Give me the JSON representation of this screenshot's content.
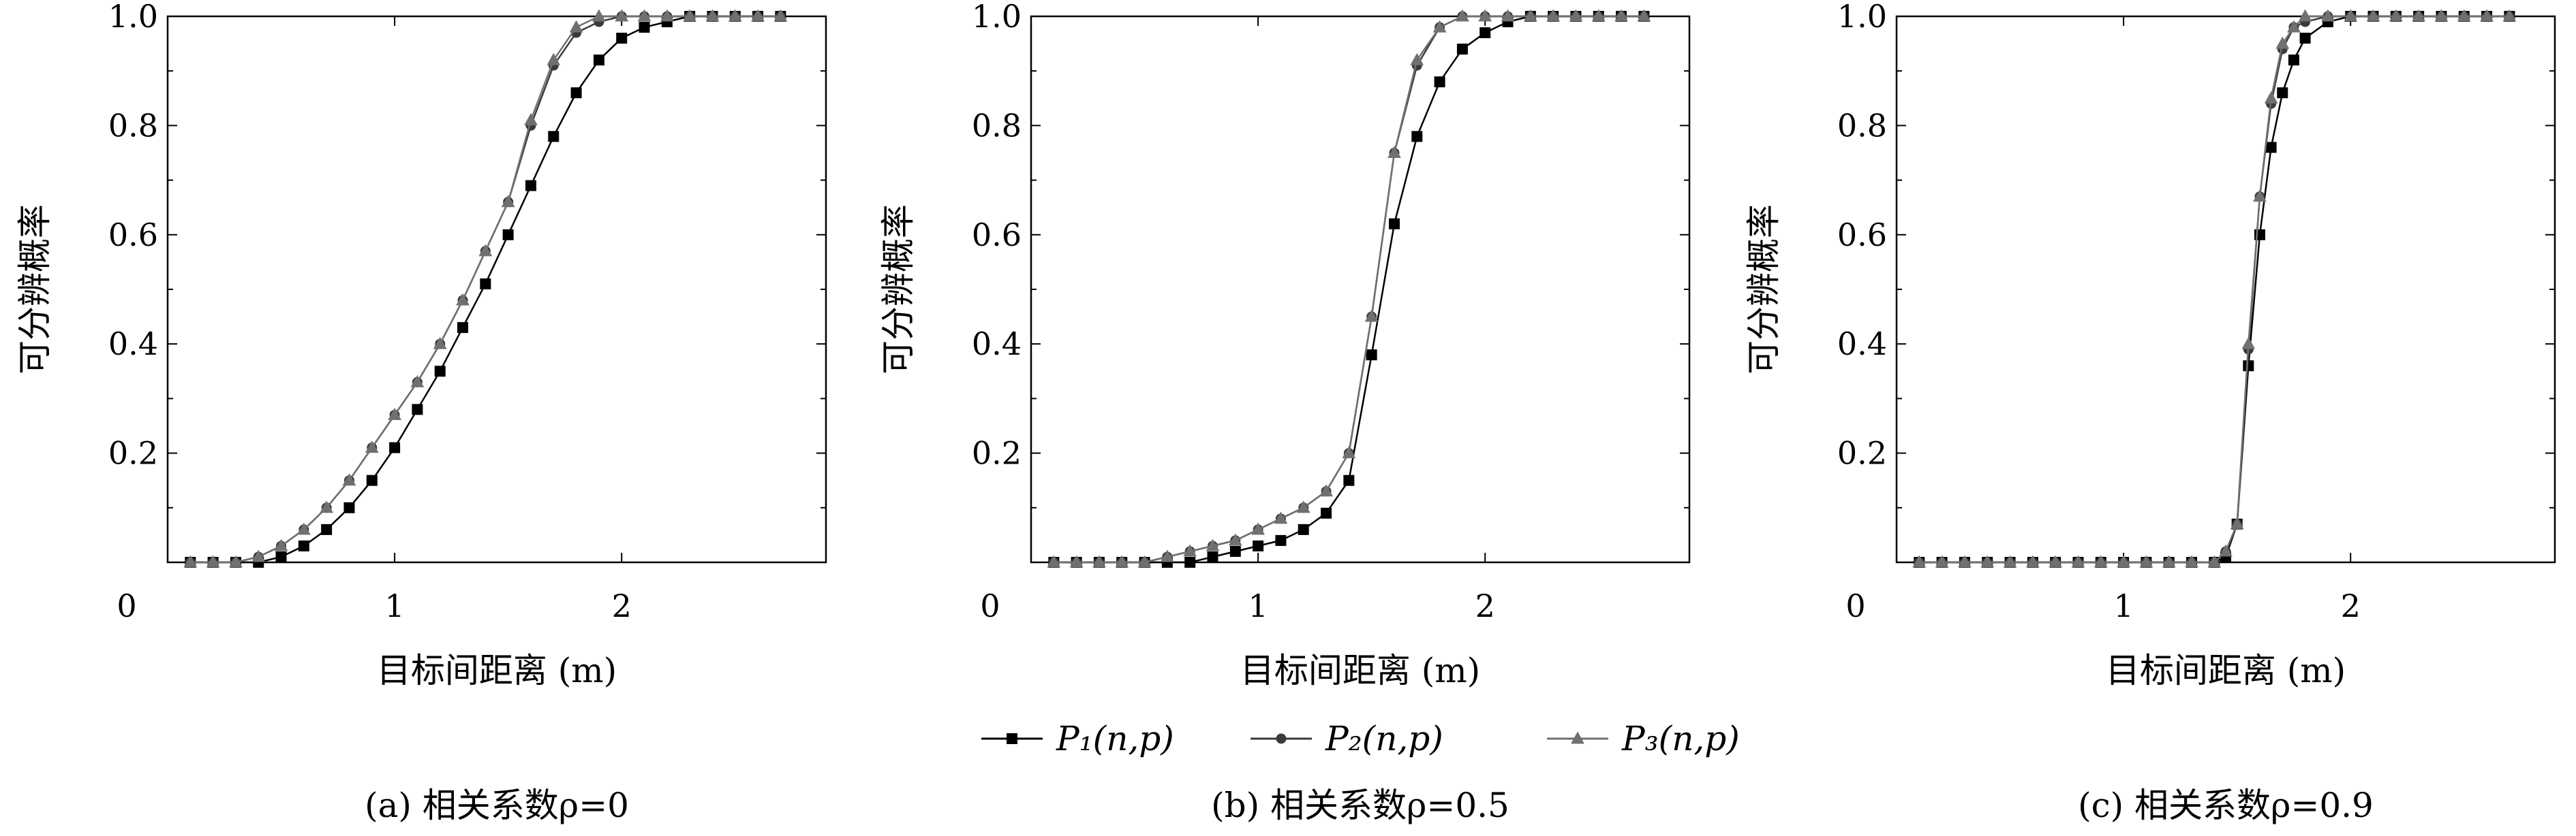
{
  "legend": {
    "items": [
      {
        "label": "P₁(n,p)",
        "color": "#000000",
        "marker": "square"
      },
      {
        "label": "P₂(n,p)",
        "color": "#3a3a3a",
        "marker": "circle"
      },
      {
        "label": "P₃(n,p)",
        "color": "#707070",
        "marker": "triangle"
      }
    ]
  },
  "chart_data": [
    {
      "type": "line",
      "caption": "(a) 相关系数ρ=0",
      "xlabel": "目标间距离 (m)",
      "ylabel": "可分辨概率",
      "xlim": [
        0,
        2.9
      ],
      "ylim": [
        0,
        1.0
      ],
      "xticks": [
        "0",
        "1",
        "2"
      ],
      "yticks": [
        "0.2",
        "0.4",
        "0.6",
        "0.8",
        "1.0"
      ],
      "grid": false,
      "x": [
        0.1,
        0.2,
        0.3,
        0.4,
        0.5,
        0.6,
        0.7,
        0.8,
        0.9,
        1.0,
        1.1,
        1.2,
        1.3,
        1.4,
        1.5,
        1.6,
        1.7,
        1.8,
        1.9,
        2.0,
        2.1,
        2.2,
        2.3,
        2.4,
        2.5,
        2.6,
        2.7
      ],
      "series": [
        {
          "name": "P₁(n,p)",
          "values": [
            0.0,
            0.0,
            0.0,
            0.0,
            0.01,
            0.03,
            0.06,
            0.1,
            0.15,
            0.21,
            0.28,
            0.35,
            0.43,
            0.51,
            0.6,
            0.69,
            0.78,
            0.86,
            0.92,
            0.96,
            0.98,
            0.99,
            1.0,
            1.0,
            1.0,
            1.0,
            1.0
          ]
        },
        {
          "name": "P₂(n,p)",
          "values": [
            0.0,
            0.0,
            0.0,
            0.01,
            0.03,
            0.06,
            0.1,
            0.15,
            0.21,
            0.27,
            0.33,
            0.4,
            0.48,
            0.57,
            0.66,
            0.8,
            0.91,
            0.97,
            0.99,
            1.0,
            1.0,
            1.0,
            1.0,
            1.0,
            1.0,
            1.0,
            1.0
          ]
        },
        {
          "name": "P₃(n,p)",
          "values": [
            0.0,
            0.0,
            0.0,
            0.01,
            0.03,
            0.06,
            0.1,
            0.15,
            0.21,
            0.27,
            0.33,
            0.4,
            0.48,
            0.57,
            0.66,
            0.81,
            0.92,
            0.98,
            1.0,
            1.0,
            1.0,
            1.0,
            1.0,
            1.0,
            1.0,
            1.0,
            1.0
          ]
        }
      ]
    },
    {
      "type": "line",
      "caption": "(b) 相关系数ρ=0.5",
      "xlabel": "目标间距离 (m)",
      "ylabel": "可分辨概率",
      "xlim": [
        0,
        2.9
      ],
      "ylim": [
        0,
        1.0
      ],
      "xticks": [
        "0",
        "1",
        "2"
      ],
      "yticks": [
        "0.2",
        "0.4",
        "0.6",
        "0.8",
        "1.0"
      ],
      "grid": false,
      "x": [
        0.1,
        0.2,
        0.3,
        0.4,
        0.5,
        0.6,
        0.7,
        0.8,
        0.9,
        1.0,
        1.1,
        1.2,
        1.3,
        1.4,
        1.5,
        1.6,
        1.7,
        1.8,
        1.9,
        2.0,
        2.1,
        2.2,
        2.3,
        2.4,
        2.5,
        2.6,
        2.7
      ],
      "series": [
        {
          "name": "P₁(n,p)",
          "values": [
            0.0,
            0.0,
            0.0,
            0.0,
            0.0,
            0.0,
            0.0,
            0.01,
            0.02,
            0.03,
            0.04,
            0.06,
            0.09,
            0.15,
            0.38,
            0.62,
            0.78,
            0.88,
            0.94,
            0.97,
            0.99,
            1.0,
            1.0,
            1.0,
            1.0,
            1.0,
            1.0
          ]
        },
        {
          "name": "P₂(n,p)",
          "values": [
            0.0,
            0.0,
            0.0,
            0.0,
            0.0,
            0.01,
            0.02,
            0.03,
            0.04,
            0.06,
            0.08,
            0.1,
            0.13,
            0.2,
            0.45,
            0.75,
            0.91,
            0.98,
            1.0,
            1.0,
            1.0,
            1.0,
            1.0,
            1.0,
            1.0,
            1.0,
            1.0
          ]
        },
        {
          "name": "P₃(n,p)",
          "values": [
            0.0,
            0.0,
            0.0,
            0.0,
            0.0,
            0.01,
            0.02,
            0.03,
            0.04,
            0.06,
            0.08,
            0.1,
            0.13,
            0.2,
            0.45,
            0.75,
            0.92,
            0.98,
            1.0,
            1.0,
            1.0,
            1.0,
            1.0,
            1.0,
            1.0,
            1.0,
            1.0
          ]
        }
      ]
    },
    {
      "type": "line",
      "caption": "(c) 相关系数ρ=0.9",
      "xlabel": "目标间距离 (m)",
      "ylabel": "可分辨概率",
      "xlim": [
        0,
        2.9
      ],
      "ylim": [
        0,
        1.0
      ],
      "xticks": [
        "0",
        "1",
        "2"
      ],
      "yticks": [
        "0.2",
        "0.4",
        "0.6",
        "0.8",
        "1.0"
      ],
      "grid": false,
      "x": [
        0.1,
        0.2,
        0.3,
        0.4,
        0.5,
        0.6,
        0.7,
        0.8,
        0.9,
        1.0,
        1.1,
        1.2,
        1.3,
        1.4,
        1.45,
        1.5,
        1.55,
        1.6,
        1.65,
        1.7,
        1.75,
        1.8,
        1.9,
        2.0,
        2.1,
        2.2,
        2.3,
        2.4,
        2.5,
        2.6,
        2.7
      ],
      "series": [
        {
          "name": "P₁(n,p)",
          "values": [
            0.0,
            0.0,
            0.0,
            0.0,
            0.0,
            0.0,
            0.0,
            0.0,
            0.0,
            0.0,
            0.0,
            0.0,
            0.0,
            0.0,
            0.01,
            0.07,
            0.36,
            0.6,
            0.76,
            0.86,
            0.92,
            0.96,
            0.99,
            1.0,
            1.0,
            1.0,
            1.0,
            1.0,
            1.0,
            1.0,
            1.0
          ]
        },
        {
          "name": "P₂(n,p)",
          "values": [
            0.0,
            0.0,
            0.0,
            0.0,
            0.0,
            0.0,
            0.0,
            0.0,
            0.0,
            0.0,
            0.0,
            0.0,
            0.0,
            0.0,
            0.02,
            0.07,
            0.39,
            0.67,
            0.84,
            0.94,
            0.98,
            0.99,
            1.0,
            1.0,
            1.0,
            1.0,
            1.0,
            1.0,
            1.0,
            1.0,
            1.0
          ]
        },
        {
          "name": "P₃(n,p)",
          "values": [
            0.0,
            0.0,
            0.0,
            0.0,
            0.0,
            0.0,
            0.0,
            0.0,
            0.0,
            0.0,
            0.0,
            0.0,
            0.0,
            0.0,
            0.02,
            0.07,
            0.4,
            0.67,
            0.85,
            0.95,
            0.98,
            1.0,
            1.0,
            1.0,
            1.0,
            1.0,
            1.0,
            1.0,
            1.0,
            1.0,
            1.0
          ]
        }
      ]
    }
  ]
}
